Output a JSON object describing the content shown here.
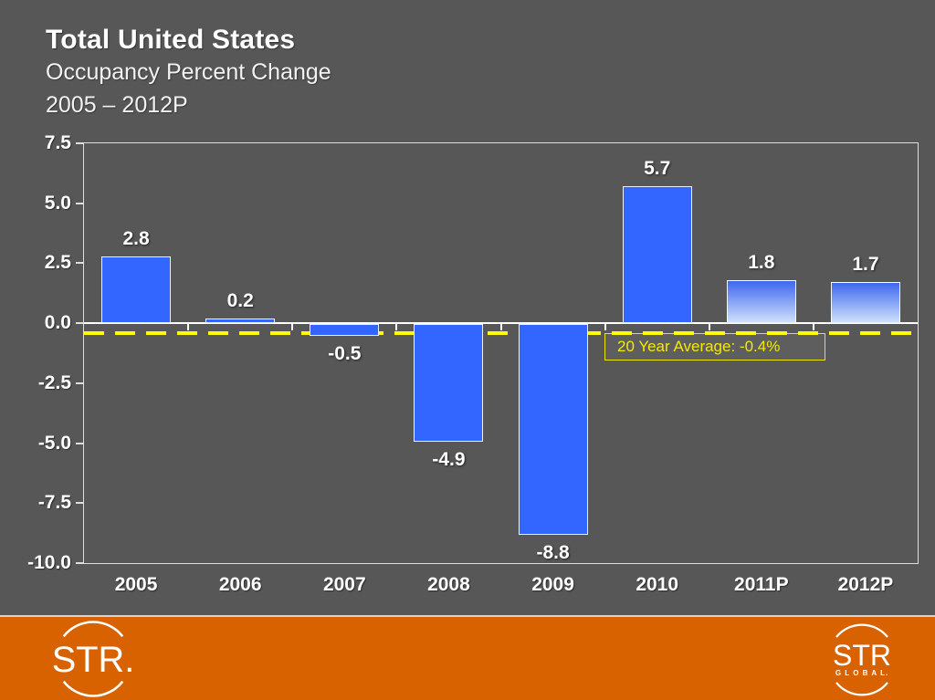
{
  "slide": {
    "title": "Total United States",
    "subtitle1": "Occupancy Percent Change",
    "subtitle2": "2005 – 2012P"
  },
  "chart_data": {
    "type": "bar",
    "title": "Total United States Occupancy Percent Change 2005 – 2012P",
    "categories": [
      "2005",
      "2006",
      "2007",
      "2008",
      "2009",
      "2010",
      "2011P",
      "2012P"
    ],
    "values": [
      2.8,
      0.2,
      -0.5,
      -4.9,
      -8.8,
      5.7,
      1.8,
      1.7
    ],
    "bar_styles": [
      "solid",
      "solid",
      "solid",
      "solid",
      "solid",
      "solid",
      "gradient",
      "gradient"
    ],
    "xlabel": "",
    "ylabel": "",
    "ylim": [
      -10.0,
      7.5
    ],
    "yticks": [
      7.5,
      5.0,
      2.5,
      0.0,
      -2.5,
      -5.0,
      -7.5,
      -10.0
    ],
    "grid": false,
    "legend": "none",
    "reference_line": {
      "value": -0.4,
      "label": "20 Year Average: -0.4%",
      "style": "dashed",
      "color": "#ffff00"
    },
    "bar_color": "#3366ff",
    "bar_gradient_top": "#3e68f0",
    "bar_gradient_bottom": "#cfe0fb"
  },
  "footer": {
    "logo_left": {
      "text": "STR."
    },
    "logo_right": {
      "text": "STR",
      "subtext": "G L O B A L."
    },
    "background": "#d96200"
  },
  "colors": {
    "slide_background": "#575757",
    "text": "#ffffff",
    "axis": "#dedede"
  }
}
